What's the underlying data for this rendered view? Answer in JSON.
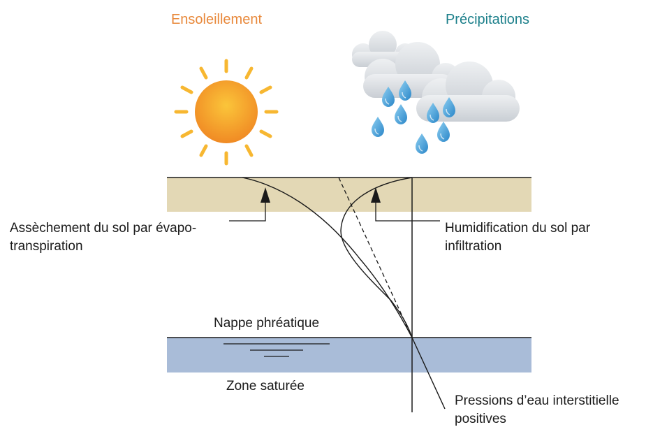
{
  "titles": {
    "sun": "Ensoleillement",
    "rain": "Précipitations"
  },
  "labels": {
    "drying": [
      "Assèchement du sol par évapo-",
      "transpiration"
    ],
    "wetting": [
      "Humidification du sol par",
      "infiltration"
    ],
    "water_table": "Nappe phréatique",
    "saturated_zone": "Zone saturée",
    "pore_pressure": [
      "Pressions d’eau interstitielle",
      "positives"
    ]
  },
  "colors": {
    "sun_title": "#e8883a",
    "rain_title": "#1b7f8a",
    "soil_layer": "#e3d8b5",
    "saturated_layer": "#a9bcd8",
    "sun_core": "#f6a12a",
    "sun_rays": "#f7b731",
    "cloud": "#d9dde2",
    "raindrop": "#3a97d4",
    "line": "#1a1a1a"
  },
  "icons": {
    "sun": "sun-icon",
    "clouds": "rain-clouds-icon",
    "water_table": "water-table-icon"
  }
}
